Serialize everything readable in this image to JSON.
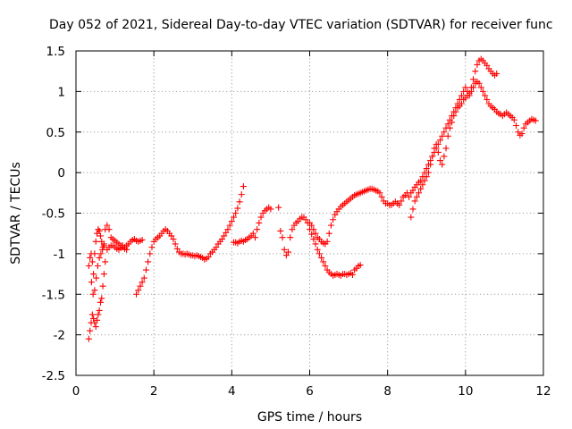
{
  "chart_data": {
    "type": "scatter",
    "title": "Day 052 of 2021, Sidereal Day-to-day VTEC variation (SDTVAR) for receiver func",
    "xlabel": "GPS time / hours",
    "ylabel": "SDTVAR / TECUs",
    "xlim": [
      0,
      12
    ],
    "ylim": [
      -2.5,
      1.5
    ],
    "xticks": [
      0,
      2,
      4,
      6,
      8,
      10,
      12
    ],
    "xtick_labels": [
      "0",
      "2",
      "4",
      "6",
      "8",
      "10",
      "12"
    ],
    "yticks": [
      -2.5,
      -2,
      -1.5,
      -1,
      -0.5,
      0,
      0.5,
      1,
      1.5
    ],
    "ytick_labels": [
      "-2.5",
      "-2",
      "-1.5",
      "-1",
      "-0.5",
      "0",
      "0.5",
      "1",
      "1.5"
    ],
    "grid": true,
    "marker": "plus",
    "color": "#ff0000",
    "series": [
      {
        "name": "segment-1-upper",
        "x": [
          0.33,
          0.36,
          0.39,
          0.42,
          0.45,
          0.48,
          0.51,
          0.54,
          0.57,
          0.6,
          0.63,
          0.66,
          0.69,
          0.72,
          0.75,
          0.8,
          0.85,
          0.9,
          0.95,
          1.0,
          1.05,
          1.1,
          1.15,
          1.2,
          1.25,
          1.3,
          1.35,
          1.4,
          1.45,
          1.5,
          1.55,
          1.6,
          1.65,
          1.7
        ],
        "y": [
          -1.15,
          -1.05,
          -1.0,
          -1.1,
          -1.25,
          -1.0,
          -0.85,
          -0.75,
          -0.7,
          -0.72,
          -0.78,
          -0.85,
          -0.92,
          -0.88,
          -0.7,
          -0.65,
          -0.7,
          -0.8,
          -0.82,
          -0.84,
          -0.86,
          -0.88,
          -0.9,
          -0.9,
          -0.92,
          -0.9,
          -0.88,
          -0.85,
          -0.83,
          -0.82,
          -0.84,
          -0.85,
          -0.84,
          -0.83
        ]
      },
      {
        "name": "segment-1-lower",
        "x": [
          0.33,
          0.36,
          0.39,
          0.42,
          0.45,
          0.48,
          0.51,
          0.54,
          0.57,
          0.6,
          0.63,
          0.66,
          0.69,
          0.72,
          0.75,
          0.8,
          0.85,
          0.9,
          0.95,
          1.0,
          1.05,
          1.1,
          1.15,
          1.2,
          1.25,
          1.3
        ],
        "y": [
          -2.05,
          -1.95,
          -1.85,
          -1.75,
          -1.8,
          -1.85,
          -1.9,
          -1.82,
          -1.75,
          -1.7,
          -1.6,
          -1.55,
          -1.4,
          -1.25,
          -1.1,
          -0.95,
          -0.92,
          -0.9,
          -0.9,
          -0.92,
          -0.94,
          -0.95,
          -0.93,
          -0.92,
          -0.94,
          -0.95
        ]
      },
      {
        "name": "segment-1-mid",
        "x": [
          0.4,
          0.44,
          0.48,
          0.52,
          0.56,
          0.6,
          0.64,
          0.68,
          0.72
        ],
        "y": [
          -1.35,
          -1.5,
          -1.45,
          -1.3,
          -1.15,
          -1.05,
          -1.0,
          -0.95,
          -0.9
        ]
      },
      {
        "name": "segment-2",
        "x": [
          1.55,
          1.6,
          1.65,
          1.7,
          1.75,
          1.8,
          1.85,
          1.9,
          1.95,
          2.0,
          2.05,
          2.1,
          2.15,
          2.2,
          2.25,
          2.3,
          2.35,
          2.4,
          2.45,
          2.5,
          2.55,
          2.6,
          2.65,
          2.7,
          2.75,
          2.8,
          2.85,
          2.9,
          2.95,
          3.0,
          3.05,
          3.1,
          3.15,
          3.2,
          3.25,
          3.3,
          3.35,
          3.4,
          3.45,
          3.5,
          3.55,
          3.6,
          3.65,
          3.7,
          3.75,
          3.8,
          3.85,
          3.9,
          3.95,
          4.0,
          4.05,
          4.1,
          4.15,
          4.2,
          4.25,
          4.3
        ],
        "y": [
          -1.5,
          -1.45,
          -1.4,
          -1.35,
          -1.3,
          -1.2,
          -1.1,
          -1.0,
          -0.92,
          -0.85,
          -0.82,
          -0.8,
          -0.78,
          -0.75,
          -0.72,
          -0.7,
          -0.72,
          -0.75,
          -0.78,
          -0.82,
          -0.88,
          -0.94,
          -0.98,
          -1.0,
          -1.0,
          -1.01,
          -1.0,
          -1.01,
          -1.02,
          -1.02,
          -1.03,
          -1.02,
          -1.03,
          -1.04,
          -1.05,
          -1.07,
          -1.06,
          -1.04,
          -1.0,
          -0.98,
          -0.95,
          -0.92,
          -0.88,
          -0.85,
          -0.82,
          -0.78,
          -0.74,
          -0.7,
          -0.65,
          -0.6,
          -0.55,
          -0.5,
          -0.44,
          -0.36,
          -0.27,
          -0.17
        ]
      },
      {
        "name": "segment-3",
        "x": [
          4.05,
          4.1,
          4.15,
          4.2,
          4.25,
          4.3,
          4.35,
          4.4,
          4.45,
          4.5,
          4.55,
          4.6,
          4.65,
          4.7,
          4.75,
          4.8,
          4.85,
          4.9,
          4.95,
          5.0
        ],
        "y": [
          -0.86,
          -0.86,
          -0.87,
          -0.85,
          -0.84,
          -0.85,
          -0.83,
          -0.82,
          -0.8,
          -0.78,
          -0.75,
          -0.8,
          -0.7,
          -0.62,
          -0.55,
          -0.5,
          -0.47,
          -0.45,
          -0.43,
          -0.45
        ]
      },
      {
        "name": "segment-4",
        "x": [
          5.2,
          5.25,
          5.3,
          5.35,
          5.4,
          5.45,
          5.5,
          5.55,
          5.6,
          5.65,
          5.7,
          5.75,
          5.8,
          5.85,
          5.9,
          5.95,
          6.0,
          6.05,
          6.1,
          6.15,
          6.2,
          6.25,
          6.3,
          6.35,
          6.4,
          6.45,
          6.5,
          6.55,
          6.6,
          6.65,
          6.7,
          6.75,
          6.8,
          6.85,
          6.9,
          6.95,
          7.0,
          7.05,
          7.1,
          7.15,
          7.2,
          7.25,
          7.3
        ],
        "y": [
          -0.43,
          -0.72,
          -0.8,
          -0.95,
          -1.02,
          -0.98,
          -0.8,
          -0.7,
          -0.65,
          -0.62,
          -0.6,
          -0.57,
          -0.55,
          -0.55,
          -0.58,
          -0.62,
          -0.7,
          -0.76,
          -0.82,
          -0.88,
          -0.95,
          -1.0,
          -1.05,
          -1.1,
          -1.15,
          -1.2,
          -1.23,
          -1.25,
          -1.27,
          -1.26,
          -1.25,
          -1.26,
          -1.27,
          -1.25,
          -1.25,
          -1.26,
          -1.25,
          -1.24,
          -1.26,
          -1.2,
          -1.18,
          -1.15,
          -1.14
        ]
      },
      {
        "name": "segment-5",
        "x": [
          6.0,
          6.05,
          6.1,
          6.15,
          6.2,
          6.25,
          6.3,
          6.35,
          6.4,
          6.45,
          6.5,
          6.55,
          6.6,
          6.65,
          6.7,
          6.75,
          6.8,
          6.85,
          6.9,
          6.95,
          7.0,
          7.05,
          7.1,
          7.15,
          7.2,
          7.25,
          7.3,
          7.35,
          7.4,
          7.45,
          7.5,
          7.55,
          7.6,
          7.65,
          7.7,
          7.75,
          7.8,
          7.85,
          7.9,
          7.95,
          8.0,
          8.05,
          8.1,
          8.15,
          8.2,
          8.25,
          8.3,
          8.35,
          8.4,
          8.45,
          8.5,
          8.55,
          8.6,
          8.65,
          8.7,
          8.75,
          8.8,
          8.85,
          8.9,
          8.95,
          9.0,
          9.05,
          9.1,
          9.15,
          9.2,
          9.25,
          9.3,
          9.35,
          9.4,
          9.45,
          9.5,
          9.55,
          9.6,
          9.65,
          9.7,
          9.75,
          9.8,
          9.85,
          9.9,
          9.95,
          10.0,
          10.05,
          10.1,
          10.15,
          10.2,
          10.25,
          10.3,
          10.35,
          10.4,
          10.45,
          10.5,
          10.55,
          10.6,
          10.65,
          10.7,
          10.75,
          10.8
        ],
        "y": [
          -0.62,
          -0.65,
          -0.7,
          -0.75,
          -0.8,
          -0.82,
          -0.85,
          -0.87,
          -0.88,
          -0.85,
          -0.75,
          -0.65,
          -0.58,
          -0.52,
          -0.48,
          -0.45,
          -0.42,
          -0.4,
          -0.38,
          -0.36,
          -0.34,
          -0.32,
          -0.3,
          -0.28,
          -0.27,
          -0.26,
          -0.25,
          -0.24,
          -0.23,
          -0.22,
          -0.21,
          -0.2,
          -0.2,
          -0.21,
          -0.22,
          -0.23,
          -0.25,
          -0.3,
          -0.35,
          -0.38,
          -0.38,
          -0.4,
          -0.4,
          -0.38,
          -0.36,
          -0.38,
          -0.4,
          -0.35,
          -0.3,
          -0.28,
          -0.25,
          -0.3,
          -0.25,
          -0.22,
          -0.18,
          -0.15,
          -0.12,
          -0.1,
          -0.05,
          0.0,
          0.05,
          0.1,
          0.15,
          0.2,
          0.25,
          0.3,
          0.35,
          0.4,
          0.45,
          0.5,
          0.55,
          0.6,
          0.65,
          0.7,
          0.75,
          0.8,
          0.85,
          0.9,
          0.95,
          1.0,
          1.05,
          1.0,
          0.95,
          1.05,
          1.15,
          1.25,
          1.33,
          1.38,
          1.4,
          1.38,
          1.35,
          1.32,
          1.28,
          1.25,
          1.22,
          1.2,
          1.22
        ]
      },
      {
        "name": "segment-5-lower",
        "x": [
          8.6,
          8.65,
          8.7,
          8.75,
          8.8,
          8.85,
          8.9,
          8.95,
          9.0,
          9.05,
          9.1,
          9.15,
          9.2,
          9.25,
          9.3,
          9.35,
          9.4,
          9.45,
          9.5,
          9.55,
          9.6,
          9.65,
          9.7,
          9.75,
          9.8,
          9.85,
          9.9,
          9.95,
          10.0,
          10.05,
          10.1,
          10.15,
          10.2,
          10.25,
          10.3,
          10.35,
          10.4,
          10.45,
          10.5,
          10.55,
          10.6,
          10.65,
          10.7,
          10.75,
          10.8,
          10.85,
          10.9,
          10.95,
          11.0,
          11.05,
          11.1,
          11.15,
          11.2,
          11.25,
          11.3,
          11.35,
          11.4,
          11.45,
          11.5,
          11.55,
          11.6,
          11.65,
          11.7,
          11.75,
          11.8
        ],
        "y": [
          -0.55,
          -0.45,
          -0.35,
          -0.3,
          -0.25,
          -0.2,
          -0.15,
          -0.1,
          -0.05,
          0.0,
          0.1,
          0.2,
          0.3,
          0.35,
          0.25,
          0.15,
          0.1,
          0.2,
          0.3,
          0.45,
          0.55,
          0.62,
          0.7,
          0.75,
          0.8,
          0.82,
          0.85,
          0.9,
          0.92,
          0.95,
          0.98,
          1.0,
          1.05,
          1.1,
          1.12,
          1.1,
          1.05,
          1.0,
          0.95,
          0.9,
          0.85,
          0.82,
          0.8,
          0.78,
          0.75,
          0.73,
          0.72,
          0.7,
          0.72,
          0.74,
          0.72,
          0.7,
          0.68,
          0.65,
          0.58,
          0.5,
          0.46,
          0.48,
          0.55,
          0.6,
          0.62,
          0.64,
          0.66,
          0.65,
          0.64
        ]
      }
    ]
  }
}
